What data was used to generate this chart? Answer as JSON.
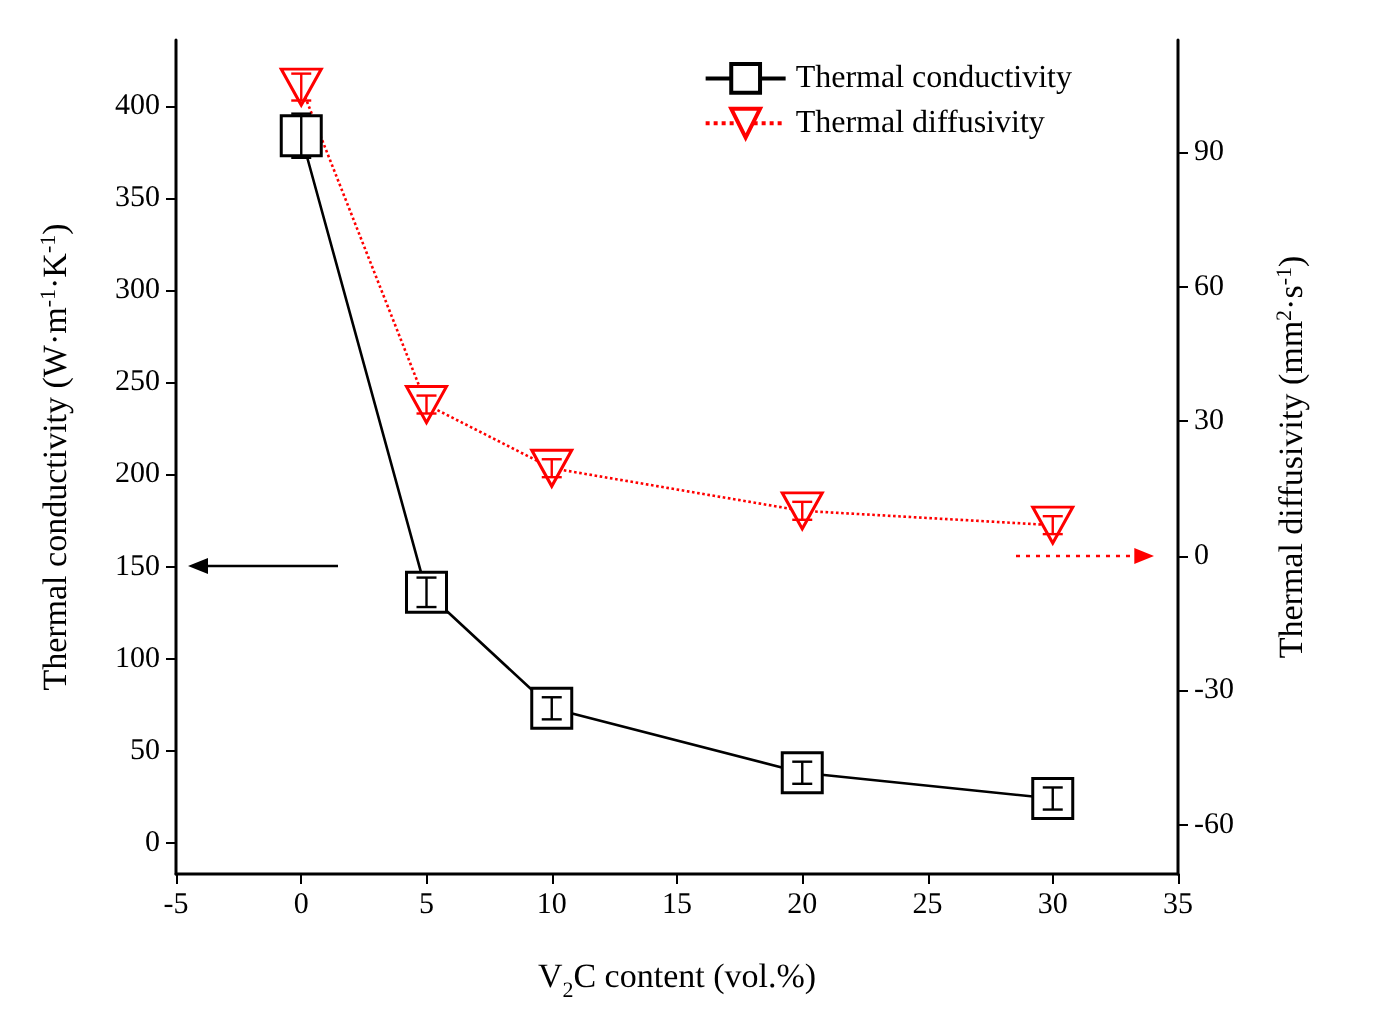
{
  "chart_data": {
    "type": "line",
    "xlabel": "V$_{2}$C content (vol.%)",
    "ylabel": "Thermal conductivity (W·m$^{-1}$·K$^{-1}$)",
    "y2label": "Thermal diffusivity (mm$^{2}$·s$^{-1}$)",
    "x": [
      0,
      5,
      10,
      20,
      30
    ],
    "xlim": [
      -5,
      35
    ],
    "xticks": [
      -5,
      0,
      5,
      10,
      15,
      20,
      25,
      30,
      35
    ],
    "ylim": [
      -17,
      436
    ],
    "yticks": [
      0,
      50,
      100,
      150,
      200,
      250,
      300,
      350,
      400
    ],
    "y2lim": [
      -71,
      115
    ],
    "y2ticks": [
      -60,
      -30,
      0,
      30,
      60,
      90
    ],
    "series": [
      {
        "name": "Thermal conductivity",
        "color": "#000000",
        "marker": "square",
        "line_style": "solid",
        "values": [
          384,
          136,
          73,
          38,
          24
        ],
        "errors": [
          12,
          8,
          6,
          6,
          6
        ]
      },
      {
        "name": "Thermal diffusivity",
        "color": "#ff0000",
        "marker": "triangle",
        "line_style": "dotted",
        "axis": "y2",
        "values": [
          104.5,
          33.7,
          19.5,
          10,
          6.8
        ],
        "errors": [
          3,
          2,
          2,
          2,
          2
        ]
      }
    ],
    "legend": "top right",
    "grid": false
  }
}
